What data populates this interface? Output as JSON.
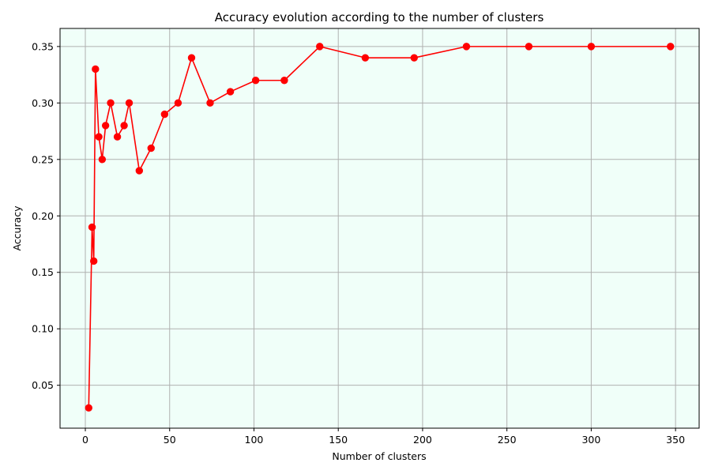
{
  "chart_data": {
    "type": "line",
    "title": "Accuracy evolution according to the number of clusters",
    "xlabel": "Number of clusters",
    "ylabel": "Accuracy",
    "xlim": [
      -15,
      364
    ],
    "ylim": [
      0.012,
      0.366
    ],
    "x_ticks": [
      0,
      50,
      100,
      150,
      200,
      250,
      300,
      350
    ],
    "y_ticks": [
      0.05,
      0.1,
      0.15,
      0.2,
      0.25,
      0.3,
      0.35
    ],
    "x_tick_labels": [
      "0",
      "50",
      "100",
      "150",
      "200",
      "250",
      "300",
      "350"
    ],
    "y_tick_labels": [
      "0.05",
      "0.10",
      "0.15",
      "0.20",
      "0.25",
      "0.30",
      "0.35"
    ],
    "grid": true,
    "background_color": "#f0fff9",
    "series": [
      {
        "color": "#ff0000",
        "marker": "circle",
        "x": [
          2,
          4,
          5,
          6,
          8,
          10,
          12,
          15,
          19,
          23,
          26,
          32,
          39,
          47,
          55,
          63,
          74,
          86,
          101,
          118,
          139,
          166,
          195,
          226,
          263,
          300,
          347
        ],
        "y": [
          0.03,
          0.19,
          0.16,
          0.33,
          0.27,
          0.25,
          0.28,
          0.3,
          0.27,
          0.28,
          0.3,
          0.24,
          0.26,
          0.29,
          0.3,
          0.34,
          0.3,
          0.31,
          0.32,
          0.32,
          0.35,
          0.34,
          0.34,
          0.35,
          0.35,
          0.35,
          0.35
        ]
      }
    ]
  }
}
